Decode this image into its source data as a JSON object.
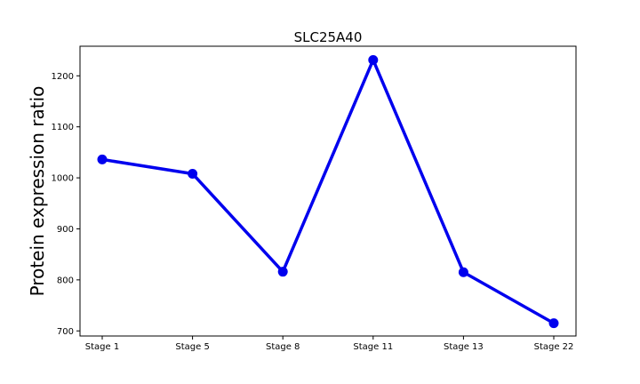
{
  "chart_data": {
    "type": "line",
    "title": "SLC25A40",
    "xlabel": "",
    "ylabel": "Protein expression ratio",
    "categories": [
      "Stage 1",
      "Stage 5",
      "Stage 8",
      "Stage 11",
      "Stage 13",
      "Stage 22"
    ],
    "series": [
      {
        "values": [
          1036,
          1008,
          816,
          1231,
          815,
          715
        ],
        "color": "#0000ee"
      }
    ],
    "ylim": [
      690,
      1258
    ],
    "yticks": [
      700,
      800,
      900,
      1000,
      1100,
      1200
    ],
    "ytick_labels": [
      "700",
      "800",
      "900",
      "1000",
      "1100",
      "1200"
    ],
    "grid": false,
    "legend": "none"
  }
}
